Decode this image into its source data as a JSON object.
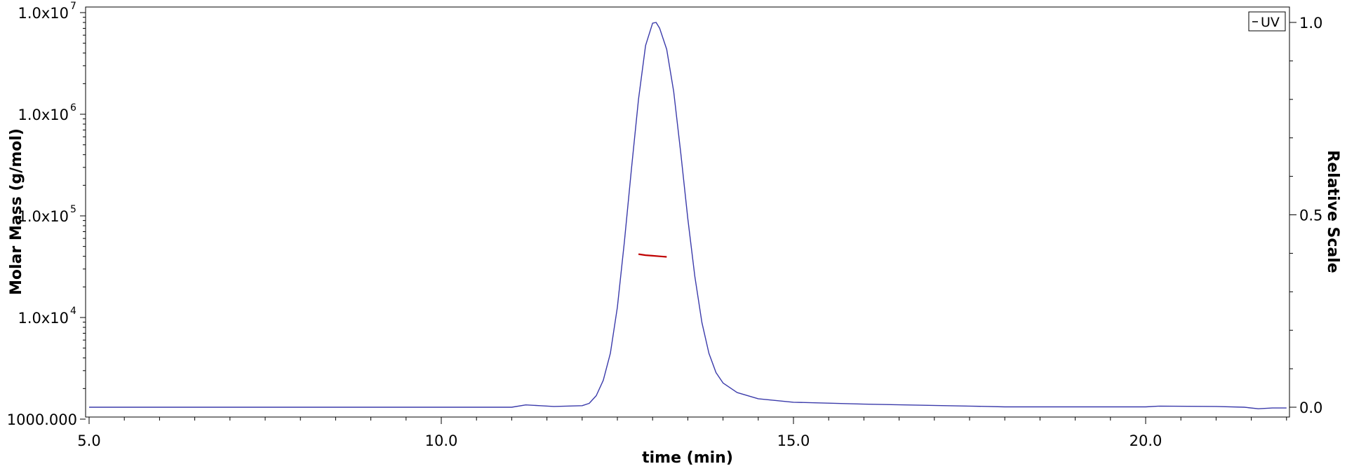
{
  "chart_data": {
    "type": "line",
    "xlabel": "time (min)",
    "ylabel": "Molar Mass (g/mol)",
    "y2label": "Relative Scale",
    "xlim": [
      5.0,
      22.0
    ],
    "ylim": [
      1000,
      10000000
    ],
    "y_scale": "log",
    "y2lim": [
      0.0,
      1.0
    ],
    "x_ticks": [
      "5.0",
      "10.0",
      "15.0",
      "20.0"
    ],
    "y_ticks": [
      {
        "mantissa": "1.0x10",
        "exponent": "7"
      },
      {
        "mantissa": "1.0x10",
        "exponent": "6"
      },
      {
        "mantissa": "1.0x10",
        "exponent": "5"
      },
      {
        "mantissa": "1.0x10",
        "exponent": "4"
      },
      {
        "mantissa": "1000.000",
        "exponent": ""
      }
    ],
    "y2_ticks": [
      "1.0",
      "0.5",
      "0.0"
    ],
    "legend": {
      "position": "top-right",
      "entries": [
        "UV"
      ]
    },
    "grid": false,
    "series": [
      {
        "name": "UV",
        "axis": "right",
        "color": "#3a3aaa",
        "points": [
          [
            5.0,
            0.0
          ],
          [
            11.0,
            0.0
          ],
          [
            11.2,
            0.006
          ],
          [
            11.4,
            0.004
          ],
          [
            11.6,
            0.002
          ],
          [
            12.0,
            0.004
          ],
          [
            12.1,
            0.01
          ],
          [
            12.2,
            0.03
          ],
          [
            12.3,
            0.07
          ],
          [
            12.4,
            0.14
          ],
          [
            12.5,
            0.26
          ],
          [
            12.6,
            0.43
          ],
          [
            12.7,
            0.62
          ],
          [
            12.8,
            0.8
          ],
          [
            12.9,
            0.94
          ],
          [
            13.0,
            0.998
          ],
          [
            13.05,
            1.0
          ],
          [
            13.1,
            0.985
          ],
          [
            13.2,
            0.93
          ],
          [
            13.3,
            0.82
          ],
          [
            13.4,
            0.66
          ],
          [
            13.5,
            0.49
          ],
          [
            13.6,
            0.34
          ],
          [
            13.7,
            0.22
          ],
          [
            13.8,
            0.14
          ],
          [
            13.9,
            0.09
          ],
          [
            14.0,
            0.063
          ],
          [
            14.2,
            0.038
          ],
          [
            14.5,
            0.022
          ],
          [
            15.0,
            0.013
          ],
          [
            16.0,
            0.008
          ],
          [
            17.5,
            0.003
          ],
          [
            18.0,
            0.001
          ],
          [
            20.0,
            0.001
          ],
          [
            20.2,
            0.003
          ],
          [
            21.0,
            0.002
          ],
          [
            21.4,
            0.0
          ],
          [
            21.6,
            -0.004
          ],
          [
            21.8,
            -0.002
          ],
          [
            22.0,
            -0.002
          ]
        ]
      },
      {
        "name": "Molar Mass",
        "axis": "left",
        "color": "#c00000",
        "points": [
          [
            12.8,
            42000
          ],
          [
            12.9,
            41000
          ],
          [
            13.0,
            40500
          ],
          [
            13.1,
            40000
          ],
          [
            13.2,
            39500
          ]
        ]
      }
    ]
  }
}
